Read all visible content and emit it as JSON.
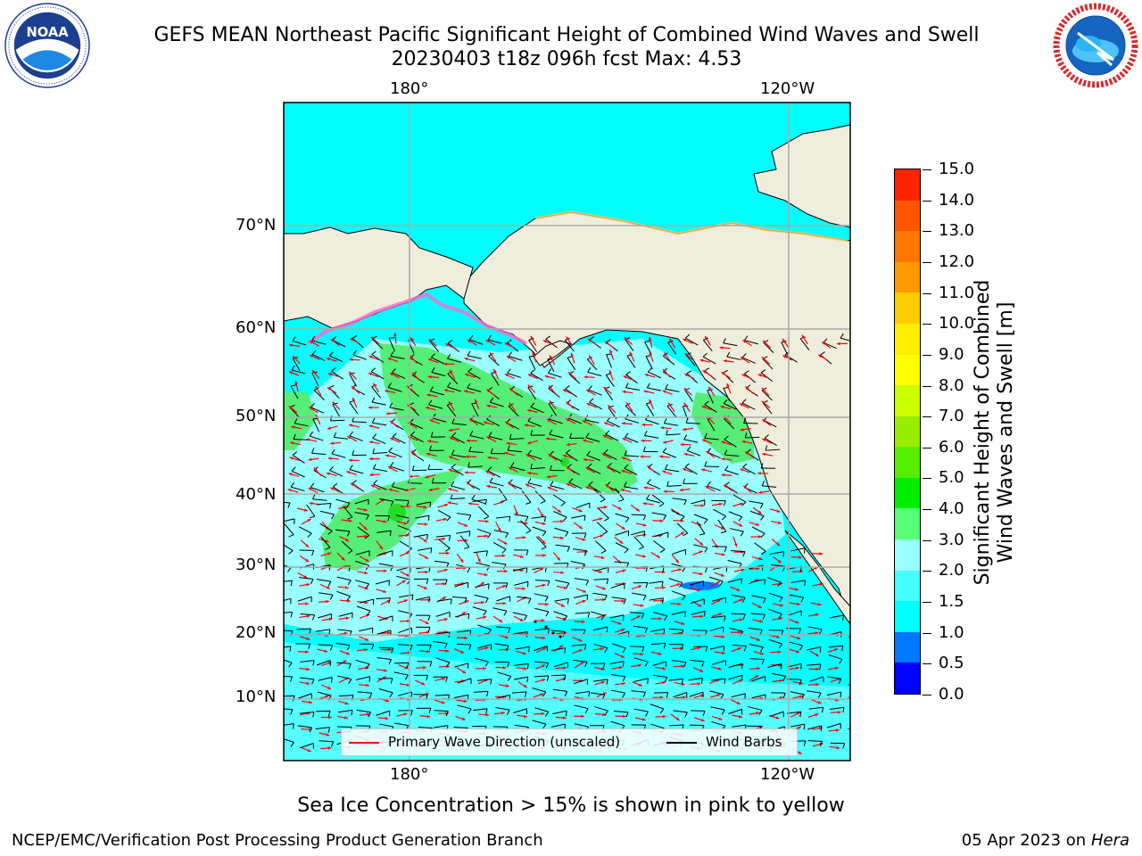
{
  "title": {
    "line1": "GEFS MEAN Northeast Pacific Significant Height of Combined Wind Waves and Swell",
    "line2": "20230403 t18z 096h fcst   Max: 4.53"
  },
  "logos": {
    "left": {
      "name": "noaa-logo",
      "text": "NOAA",
      "ring_text": "NATIONAL OCEANIC AND ATMOSPHERIC ADMINISTRATION · U.S. DEPARTMENT OF COMMERCE"
    },
    "right": {
      "name": "nws-logo",
      "ring_text": "NATIONAL WEATHER SERVICE"
    }
  },
  "map": {
    "top_lon_labels": [
      "180°",
      "120°W"
    ],
    "bottom_lon_labels": [
      "180°",
      "120°W"
    ],
    "lat_labels": [
      "70°N",
      "60°N",
      "50°N",
      "40°N",
      "30°N",
      "20°N",
      "10°N"
    ],
    "colors": {
      "land": "#efeddc",
      "ocean_low": "#00ffff",
      "ocean_mid": "#99ffff",
      "wave_green": "#55ee77",
      "wave_green_dark": "#22dd22",
      "arrow": "#ff0000",
      "barb": "#000000"
    },
    "legend": {
      "wave_label": "Primary Wave Direction (unscaled)",
      "barb_label": "Wind Barbs"
    }
  },
  "colorbar": {
    "title_line1": "Significant Height of Combined",
    "title_line2": "Wind Waves and Swell [m]",
    "ticks": [
      "15.0",
      "14.0",
      "13.0",
      "12.0",
      "11.0",
      "10.0",
      "9.0",
      "8.0",
      "7.0",
      "6.0",
      "5.0",
      "4.0",
      "3.0",
      "2.0",
      "1.5",
      "1.0",
      "0.5",
      "0.0"
    ],
    "colors_bottom_to_top": [
      "#0000ff",
      "#0077ff",
      "#00ffff",
      "#44ffff",
      "#99ffff",
      "#55ff77",
      "#00ee00",
      "#55ee00",
      "#99ee00",
      "#ccff00",
      "#ffff00",
      "#ffee00",
      "#ffcc00",
      "#ff9900",
      "#ff7700",
      "#ff5500",
      "#ff2200"
    ]
  },
  "footer": {
    "note": "Sea Ice Concentration > 15% is shown in pink to yellow",
    "left": "NCEP/EMC/Verification Post Processing Product Generation Branch",
    "right_date": "05 Apr 2023 on",
    "right_machine": "Hera"
  }
}
